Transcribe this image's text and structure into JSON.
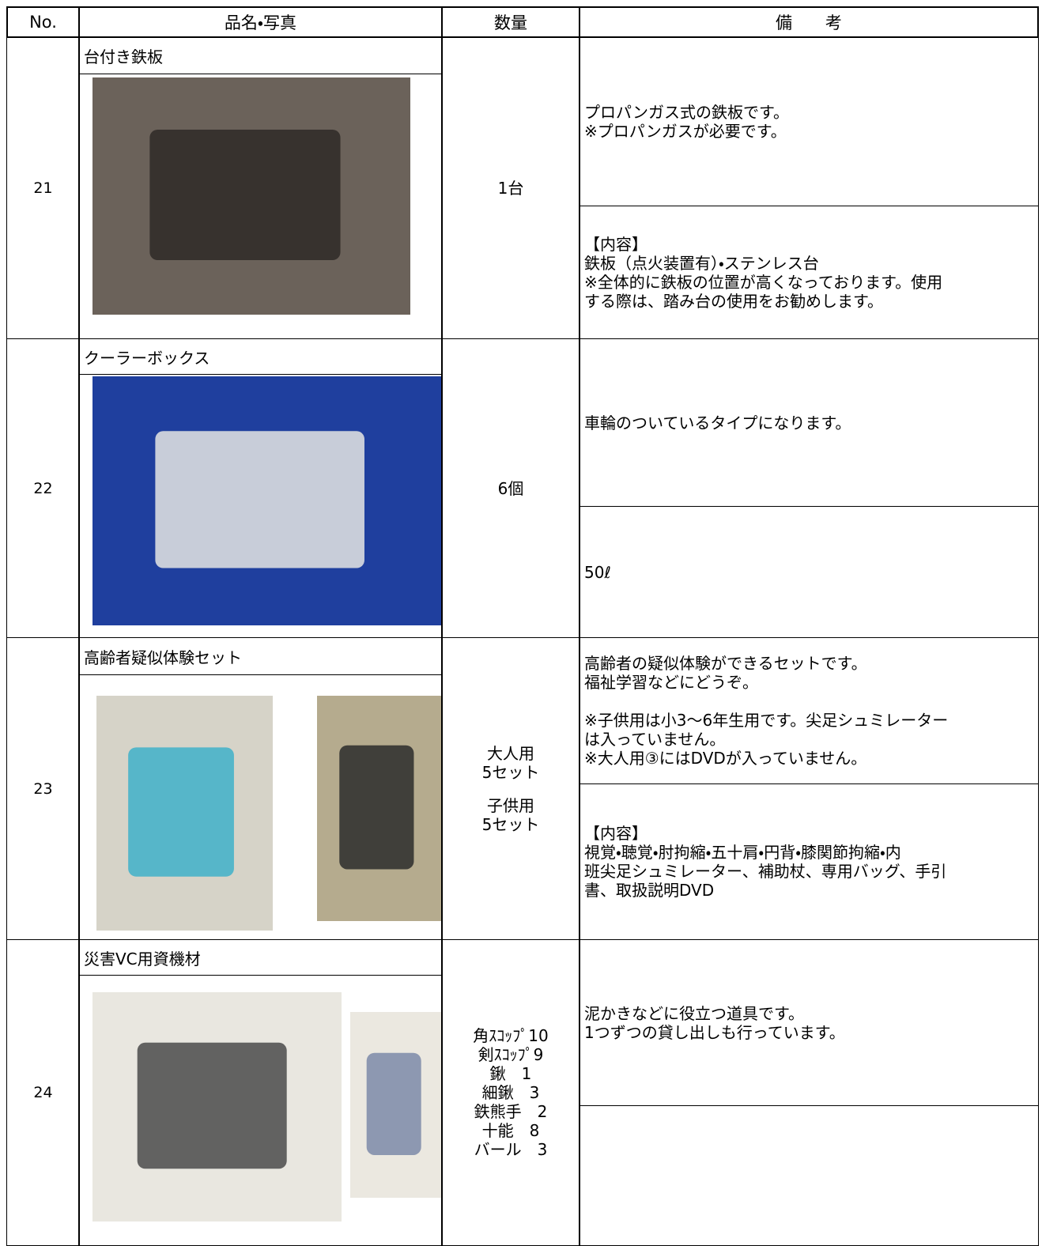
{
  "header": {
    "no": "No.",
    "name": "品名・写真",
    "quantity": "数量",
    "remarks": "備　　考"
  },
  "items": [
    {
      "no": "21",
      "name": "台付き鉄板",
      "quantity": [
        "1台"
      ],
      "remarks_top": "プロパンガス式の鉄板です。\n※プロパンガスが必要です。",
      "remarks_bottom": "【内容】\n鉄板（点火装置有）・ステンレス台\n※全体的に鉄板の位置が高くなっております。使用\nする際は、踏み台の使用をお勧めします。"
    },
    {
      "no": "22",
      "name": "クーラーボックス",
      "quantity": [
        "6個"
      ],
      "remarks_top": "車輪のついているタイプになります。",
      "remarks_bottom": "50ℓ"
    },
    {
      "no": "23",
      "name": "高齢者疑似体験セット",
      "quantity": [
        "大人用\n5セット",
        "子供用\n5セット"
      ],
      "remarks_top": "高齢者の疑似体験ができるセットです。\n福祉学習などにどうぞ。\n\n※子供用は小3～6年生用です。尖足シュミレーター\nは入っていません。\n※大人用③にはDVDが入っていません。",
      "remarks_bottom": "【内容】\n視覚・聴覚・肘拘縮・五十肩・円背・膝関節拘縮・内\n班尖足シュミレーター、補助杖、専用バッグ、手引\n書、取扱説明DVD"
    },
    {
      "no": "24",
      "name": "災害VC用資機材",
      "quantity": [
        "角ｽｺｯﾌﾟ10\n剣ｽｺｯﾌﾟ9\n鍬　1\n細鍬　3\n鉄熊手　2\n十能　8\nバール　3"
      ],
      "remarks_top": "泥かきなどに役立つ道具です。\n1つずつの貸し出しも行っています。"
    }
  ]
}
